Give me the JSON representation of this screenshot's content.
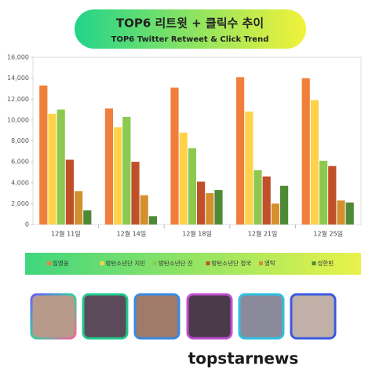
{
  "chart_data": {
    "type": "bar",
    "title": "TOP6 리트윗 + 클릭수 추이",
    "subtitle": "TOP6 Twitter Retweet & Click Trend",
    "categories": [
      "12월 11일",
      "12월 14일",
      "12월 18일",
      "12월 21일",
      "12월 25일"
    ],
    "series": [
      {
        "name": "임영웅",
        "color": "#f07f3c",
        "values": [
          13300,
          11100,
          13100,
          14100,
          14000
        ]
      },
      {
        "name": "방탄소년단 지민",
        "color": "#ffd24a",
        "values": [
          10600,
          9300,
          8800,
          10800,
          11900
        ]
      },
      {
        "name": "방탄소년단 진",
        "color": "#8dc94f",
        "values": [
          11000,
          10300,
          7300,
          5200,
          6100
        ]
      },
      {
        "name": "방탄소년단 정국",
        "color": "#c0502a",
        "values": [
          6200,
          6000,
          4100,
          4600,
          5600
        ]
      },
      {
        "name": "영탁",
        "color": "#d4902f",
        "values": [
          3200,
          2800,
          3000,
          2000,
          2300
        ]
      },
      {
        "name": "성한빈",
        "color": "#4e8a35",
        "values": [
          1350,
          800,
          3300,
          3700,
          2100
        ]
      }
    ],
    "ylim": [
      0,
      16000
    ],
    "yticks": [
      0,
      {
        "value": 2000,
        "label": "2,000"
      },
      {
        "value": 4000,
        "label": "4,000"
      },
      {
        "value": 6000,
        "label": "6,000"
      },
      {
        "value": 8000,
        "label": "8,000"
      },
      {
        "value": 10000,
        "label": "10,000"
      },
      {
        "value": 12000,
        "label": "12,000"
      },
      {
        "value": 14000,
        "label": "14,000"
      },
      {
        "value": 16000,
        "label": "16,000"
      }
    ],
    "grid": false,
    "legend": "bottom"
  },
  "footer": "topstarnews"
}
